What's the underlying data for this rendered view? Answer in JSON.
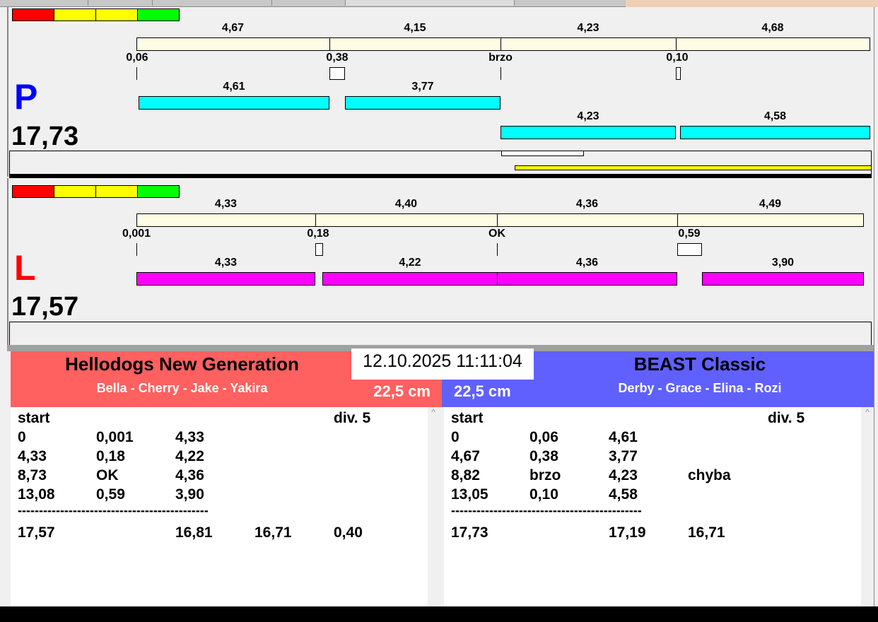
{
  "colors": {
    "cream": "#fffce6",
    "cyan": "#00ffff",
    "magenta": "#ff00ff",
    "yellow": "#ffff00",
    "red_team": "#ff6060",
    "blue_team": "#6060ff",
    "p_letter": "#0000ff",
    "l_letter": "#ff0000"
  },
  "indicator": [
    "#ff0000",
    "#ffff00",
    "#ffff00",
    "#00ff00"
  ],
  "lanes": {
    "p": {
      "letter": "P",
      "total": "17,73",
      "segments": [
        "4,67",
        "4,15",
        "4,23",
        "4,68"
      ],
      "splits": [
        "0,06",
        "0,38",
        "brzo",
        "0,10"
      ],
      "runs_row1": [
        "4,61",
        "3,77"
      ],
      "runs_row2": [
        "4,23",
        "4,58"
      ]
    },
    "l": {
      "letter": "L",
      "total": "17,57",
      "segments": [
        "4,33",
        "4,40",
        "4,36",
        "4,49"
      ],
      "splits": [
        "0,001",
        "0,18",
        "OK",
        "0,59"
      ],
      "runs_row1": [
        "4,33",
        "4,22",
        "4,36",
        "3,90"
      ]
    }
  },
  "datetime": "12.10.2025 11:11:04",
  "left_team": {
    "name": "Hellodogs New Generation",
    "dogs": "Bella - Cherry - Jake - Yakira",
    "height": "22,5 cm",
    "header": [
      "start",
      "div.  5"
    ],
    "rows": [
      [
        "0",
        "0,001",
        "4,33"
      ],
      [
        "4,33",
        "0,18",
        "4,22"
      ],
      [
        "8,73",
        "OK",
        "4,36"
      ],
      [
        "13,08",
        "0,59",
        "3,90"
      ]
    ],
    "separator": "---------------------------------------------",
    "totals": [
      "17,57",
      "",
      "16,81",
      "16,71",
      "0,40"
    ]
  },
  "right_team": {
    "name": "BEAST Classic",
    "dogs": "Derby - Grace - Elina - Rozi",
    "height": "22,5 cm",
    "header": [
      "start",
      "div.  5"
    ],
    "rows": [
      [
        "0",
        "0,06",
        "4,61"
      ],
      [
        "4,67",
        "0,38",
        "3,77"
      ],
      [
        "8,82",
        "brzo",
        "4,23",
        "chyba"
      ],
      [
        "13,05",
        "0,10",
        "4,58"
      ]
    ],
    "separator": "---------------------------------------------",
    "totals": [
      "17,73",
      "",
      "17,19",
      "16,71"
    ]
  }
}
